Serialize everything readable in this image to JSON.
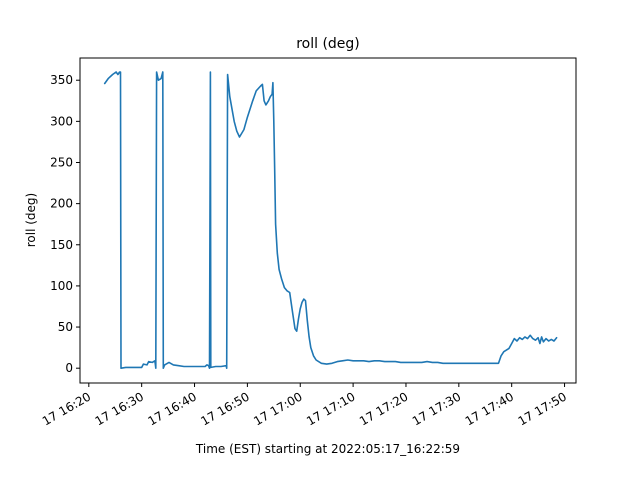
{
  "chart_data": {
    "type": "line",
    "title": "roll (deg)",
    "xlabel": "Time (EST) starting at 2022:05:17_16:22:59",
    "ylabel": "roll (deg)",
    "x_ticks": [
      "17 16:20",
      "17 16:30",
      "17 16:40",
      "17 16:50",
      "17 17:00",
      "17 17:10",
      "17 17:20",
      "17 17:30",
      "17 17:40",
      "17 17:50"
    ],
    "y_ticks": [
      0,
      50,
      100,
      150,
      200,
      250,
      300,
      350
    ],
    "xlim": [
      "16:18:20",
      "17:52:10"
    ],
    "ylim": [
      -18,
      377
    ],
    "grid": false,
    "series": [
      {
        "color": "#1f77b4",
        "points": [
          [
            "16:23:00",
            346
          ],
          [
            "16:23:40",
            352
          ],
          [
            "16:24:30",
            357
          ],
          [
            "16:25:10",
            360
          ],
          [
            "16:25:30",
            357
          ],
          [
            "16:25:50",
            360
          ],
          [
            "16:26:00",
            360
          ],
          [
            "16:26:05",
            0
          ],
          [
            "16:27:00",
            1
          ],
          [
            "16:29:00",
            1
          ],
          [
            "16:30:00",
            1
          ],
          [
            "16:30:20",
            5
          ],
          [
            "16:31:00",
            4
          ],
          [
            "16:31:20",
            8
          ],
          [
            "16:32:00",
            7
          ],
          [
            "16:32:30",
            9
          ],
          [
            "16:32:40",
            0
          ],
          [
            "16:32:50",
            360
          ],
          [
            "16:33:10",
            350
          ],
          [
            "16:33:40",
            352
          ],
          [
            "16:34:00",
            360
          ],
          [
            "16:34:05",
            0
          ],
          [
            "16:34:20",
            4
          ],
          [
            "16:35:10",
            7
          ],
          [
            "16:36:00",
            4
          ],
          [
            "16:37:00",
            3
          ],
          [
            "16:38:00",
            2
          ],
          [
            "16:40:00",
            2
          ],
          [
            "16:41:00",
            2
          ],
          [
            "16:42:00",
            2
          ],
          [
            "16:42:20",
            4
          ],
          [
            "16:42:40",
            3
          ],
          [
            "16:42:50",
            0
          ],
          [
            "16:43:00",
            360
          ],
          [
            "16:43:05",
            1
          ],
          [
            "16:44:00",
            2
          ],
          [
            "16:45:00",
            2
          ],
          [
            "16:46:00",
            3
          ],
          [
            "16:46:05",
            0
          ],
          [
            "16:46:15",
            357
          ],
          [
            "16:46:40",
            330
          ],
          [
            "16:47:30",
            300
          ],
          [
            "16:48:00",
            288
          ],
          [
            "16:48:30",
            281
          ],
          [
            "16:49:20",
            290
          ],
          [
            "16:50:00",
            305
          ],
          [
            "16:51:00",
            325
          ],
          [
            "16:51:40",
            337
          ],
          [
            "16:52:30",
            343
          ],
          [
            "16:52:50",
            345
          ],
          [
            "16:53:10",
            325
          ],
          [
            "16:53:30",
            320
          ],
          [
            "16:54:00",
            325
          ],
          [
            "16:54:20",
            330
          ],
          [
            "16:54:40",
            333
          ],
          [
            "16:54:50",
            347
          ],
          [
            "16:55:00",
            300
          ],
          [
            "16:55:10",
            240
          ],
          [
            "16:55:20",
            175
          ],
          [
            "16:55:40",
            140
          ],
          [
            "16:56:00",
            120
          ],
          [
            "16:56:30",
            108
          ],
          [
            "16:57:00",
            98
          ],
          [
            "16:57:30",
            94
          ],
          [
            "16:58:00",
            92
          ],
          [
            "16:58:30",
            70
          ],
          [
            "16:59:00",
            48
          ],
          [
            "16:59:20",
            45
          ],
          [
            "16:59:40",
            60
          ],
          [
            "17:00:00",
            72
          ],
          [
            "17:00:20",
            80
          ],
          [
            "17:00:40",
            84
          ],
          [
            "17:01:00",
            82
          ],
          [
            "17:01:20",
            58
          ],
          [
            "17:01:40",
            38
          ],
          [
            "17:02:00",
            25
          ],
          [
            "17:02:30",
            15
          ],
          [
            "17:03:00",
            10
          ],
          [
            "17:04:00",
            6
          ],
          [
            "17:05:00",
            5
          ],
          [
            "17:06:00",
            6
          ],
          [
            "17:07:00",
            8
          ],
          [
            "17:08:00",
            9
          ],
          [
            "17:09:00",
            10
          ],
          [
            "17:10:00",
            9
          ],
          [
            "17:11:00",
            9
          ],
          [
            "17:12:00",
            9
          ],
          [
            "17:13:00",
            8
          ],
          [
            "17:14:00",
            9
          ],
          [
            "17:15:00",
            9
          ],
          [
            "17:16:00",
            8
          ],
          [
            "17:17:00",
            8
          ],
          [
            "17:18:00",
            8
          ],
          [
            "17:19:00",
            7
          ],
          [
            "17:20:00",
            7
          ],
          [
            "17:21:00",
            7
          ],
          [
            "17:22:00",
            7
          ],
          [
            "17:23:00",
            7
          ],
          [
            "17:24:00",
            8
          ],
          [
            "17:25:00",
            7
          ],
          [
            "17:26:00",
            7
          ],
          [
            "17:27:00",
            6
          ],
          [
            "17:28:00",
            6
          ],
          [
            "17:29:00",
            6
          ],
          [
            "17:30:00",
            6
          ],
          [
            "17:31:00",
            6
          ],
          [
            "17:32:00",
            6
          ],
          [
            "17:33:00",
            6
          ],
          [
            "17:34:00",
            6
          ],
          [
            "17:35:00",
            6
          ],
          [
            "17:36:00",
            6
          ],
          [
            "17:37:00",
            6
          ],
          [
            "17:37:30",
            6
          ],
          [
            "17:38:00",
            15
          ],
          [
            "17:38:30",
            20
          ],
          [
            "17:39:00",
            22
          ],
          [
            "17:39:30",
            24
          ],
          [
            "17:40:00",
            30
          ],
          [
            "17:40:30",
            36
          ],
          [
            "17:41:00",
            33
          ],
          [
            "17:41:30",
            37
          ],
          [
            "17:42:00",
            35
          ],
          [
            "17:42:30",
            38
          ],
          [
            "17:43:00",
            36
          ],
          [
            "17:43:30",
            40
          ],
          [
            "17:44:00",
            36
          ],
          [
            "17:44:30",
            34
          ],
          [
            "17:45:00",
            37
          ],
          [
            "17:45:20",
            30
          ],
          [
            "17:45:40",
            38
          ],
          [
            "17:46:00",
            32
          ],
          [
            "17:46:30",
            36
          ],
          [
            "17:47:00",
            33
          ],
          [
            "17:47:30",
            35
          ],
          [
            "17:48:00",
            33
          ],
          [
            "17:48:30",
            37
          ]
        ]
      }
    ]
  }
}
